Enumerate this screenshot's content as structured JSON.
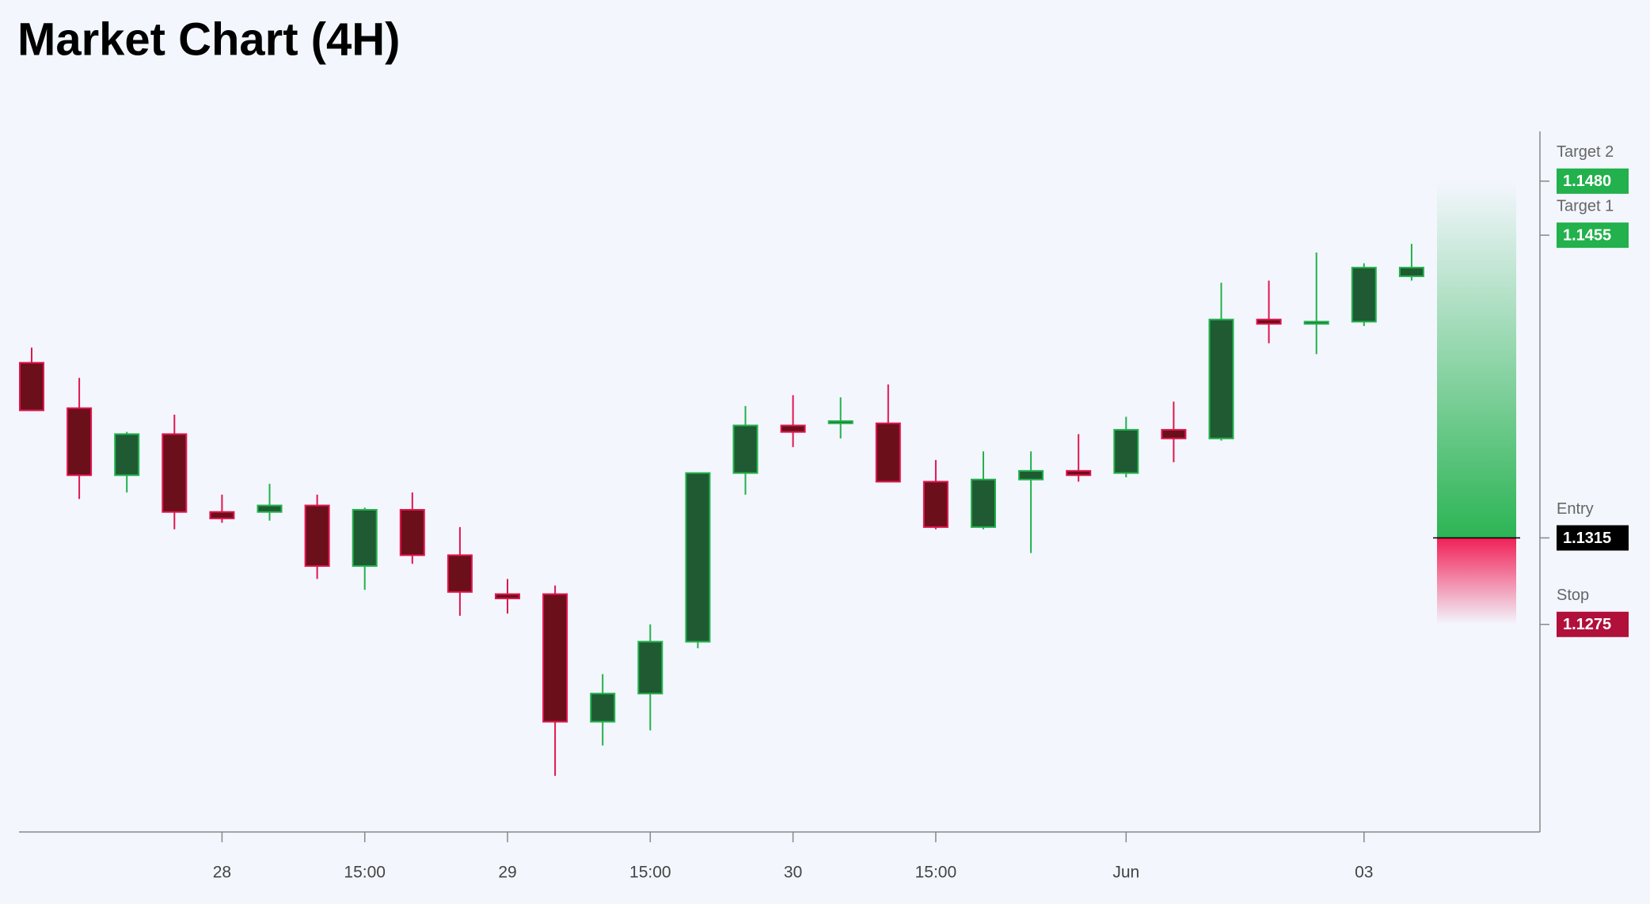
{
  "chart_data": {
    "type": "candlestick",
    "title": "Market Chart (4H)",
    "categories": [
      null,
      null,
      null,
      null,
      "28",
      null,
      null,
      "15:00",
      null,
      null,
      "29",
      null,
      null,
      "15:00",
      null,
      null,
      "30",
      null,
      null,
      "15:00",
      null,
      null,
      null,
      "Jun",
      null,
      null,
      null,
      null,
      "03",
      null
    ],
    "open": [
      1.1396,
      1.1375,
      1.1344,
      1.1363,
      1.1327,
      1.1327,
      1.133,
      1.1302,
      1.1328,
      1.1307,
      1.1289,
      1.1289,
      1.123,
      1.1243,
      1.1267,
      1.1345,
      1.1367,
      1.1368,
      1.1368,
      1.1341,
      1.132,
      1.1342,
      1.1346,
      1.1345,
      1.1365,
      1.1361,
      1.1416,
      1.1414,
      1.1415,
      1.1436
    ],
    "high": [
      1.1403,
      1.1389,
      1.1364,
      1.1372,
      1.1335,
      1.134,
      1.1335,
      1.1329,
      1.1336,
      1.132,
      1.1296,
      1.1293,
      1.1252,
      1.1275,
      1.1345,
      1.1376,
      1.1381,
      1.138,
      1.1386,
      1.1351,
      1.1355,
      1.1355,
      1.1363,
      1.1371,
      1.1378,
      1.1433,
      1.1434,
      1.1447,
      1.1442,
      1.1451
    ],
    "low": [
      1.1374,
      1.1333,
      1.1336,
      1.1319,
      1.1322,
      1.1323,
      1.1296,
      1.1291,
      1.1303,
      1.1279,
      1.128,
      1.1205,
      1.1219,
      1.1226,
      1.1264,
      1.1335,
      1.1357,
      1.1361,
      1.1341,
      1.1319,
      1.1319,
      1.1308,
      1.1341,
      1.1343,
      1.135,
      1.136,
      1.1405,
      1.14,
      1.1413,
      1.1434
    ],
    "close": [
      1.1374,
      1.1344,
      1.1363,
      1.1327,
      1.1324,
      1.133,
      1.1302,
      1.1328,
      1.1307,
      1.129,
      1.1287,
      1.123,
      1.1243,
      1.1267,
      1.1345,
      1.1367,
      1.1364,
      1.1369,
      1.1341,
      1.132,
      1.1342,
      1.1346,
      1.1344,
      1.1365,
      1.1361,
      1.1416,
      1.1414,
      1.1415,
      1.144,
      1.144
    ],
    "up_color": "#22b14c",
    "up_fill": "#1f5a32",
    "down_color": "#e0164e",
    "down_fill": "#6b0f1a",
    "ylim": [
      1.1179,
      1.1503
    ],
    "levels": [
      {
        "name": "Target 2",
        "value": 1.148,
        "label": "1.1480",
        "color": "#22b14c"
      },
      {
        "name": "Target 1",
        "value": 1.1455,
        "label": "1.1455",
        "color": "#22b14c"
      },
      {
        "name": "Entry",
        "value": 1.1315,
        "label": "1.1315",
        "color": "#000000"
      },
      {
        "name": "Stop",
        "value": 1.1275,
        "label": "1.1275",
        "color": "#b0103a"
      }
    ]
  }
}
